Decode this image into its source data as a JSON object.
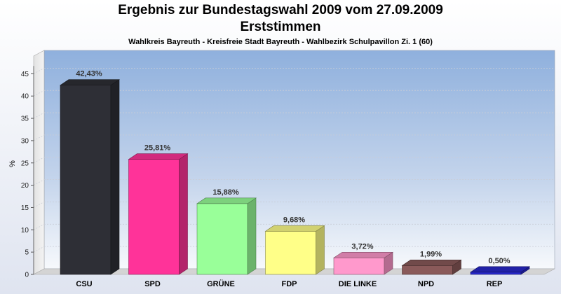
{
  "title": "Ergebnis zur Bundestagswahl 2009 vom 27.09.2009",
  "subtitle_line2": "Erststimmen",
  "subtitle_small": "Wahlkreis Bayreuth - Kreisfreie Stadt Bayreuth - Wahlbezirk Schulpavillon Zi. 1 (60)",
  "chart_data": {
    "type": "bar",
    "title": "Ergebnis zur Bundestagswahl 2009 vom 27.09.2009",
    "subtitle": "Erststimmen",
    "ylabel": "%",
    "xlabel": "",
    "ylim": [
      0,
      48
    ],
    "yticks": [
      0,
      5,
      10,
      15,
      20,
      25,
      30,
      35,
      40,
      45
    ],
    "grid": true,
    "categories": [
      "CSU",
      "SPD",
      "GRÜNE",
      "FDP",
      "DIE LINKE",
      "NPD",
      "REP"
    ],
    "values": [
      42.43,
      25.81,
      15.88,
      9.68,
      3.72,
      1.99,
      0.5
    ],
    "labels": [
      "42,43%",
      "25,81%",
      "15,88%",
      "9,68%",
      "3,72%",
      "1,99%",
      "0,50%"
    ],
    "colors": [
      "#2e2f36",
      "#ff3399",
      "#99ff99",
      "#ffff88",
      "#ff99cc",
      "#8a5a5a",
      "#2828cc"
    ]
  }
}
